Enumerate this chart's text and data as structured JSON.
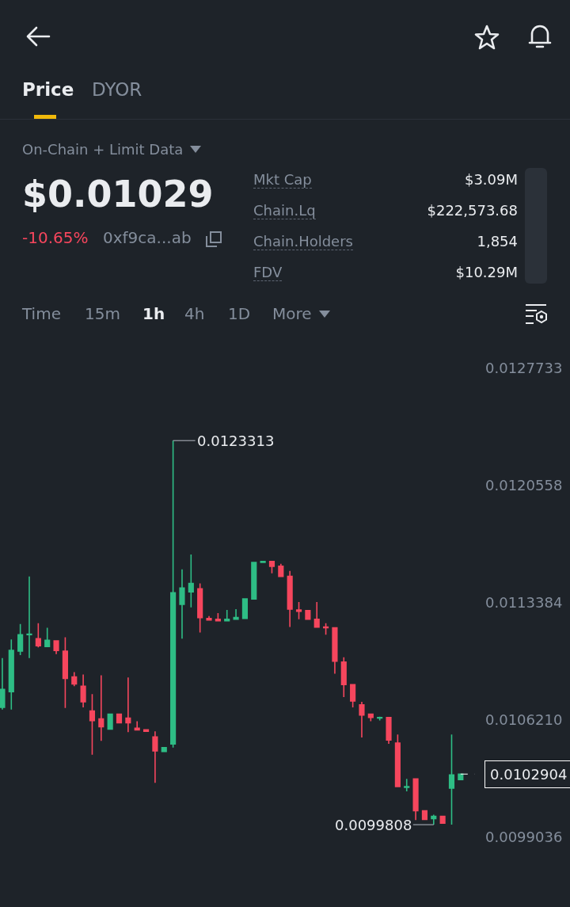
{
  "chart_data": {
    "type": "candlestick",
    "categories": [
      null,
      null,
      null,
      null,
      null,
      null,
      null,
      null,
      null,
      null,
      null,
      null,
      null,
      null,
      null,
      null,
      null,
      null,
      null,
      null,
      null,
      null,
      null,
      null,
      null,
      null,
      null,
      null,
      null,
      null,
      null,
      null,
      null,
      null,
      null,
      null,
      null,
      null,
      null,
      null,
      null,
      null,
      null,
      null,
      null,
      null,
      null,
      null,
      null,
      null,
      null,
      null
    ],
    "ohlc": [
      [
        0.010699,
        0.011,
        0.010685,
        0.010809
      ],
      [
        0.010795,
        0.011114,
        0.010685,
        0.011047
      ],
      [
        0.011043,
        0.011209,
        0.011019,
        0.011143
      ],
      [
        0.011143,
        0.0115,
        0.011,
        0.011147
      ],
      [
        0.011119,
        0.011214,
        0.011066,
        0.011076
      ],
      [
        0.011071,
        0.011186,
        0.011071,
        0.011109
      ],
      [
        0.011105,
        0.011105,
        0.011024,
        0.011047
      ],
      [
        0.011043,
        0.011128,
        0.010695,
        0.010876
      ],
      [
        0.010885,
        0.010914,
        0.010828,
        0.010842
      ],
      [
        0.010828,
        0.0109,
        0.010699,
        0.010733
      ],
      [
        0.010676,
        0.01078,
        0.010409,
        0.010618
      ],
      [
        0.010628,
        0.010895,
        0.010494,
        0.01058
      ],
      [
        0.010566,
        0.010657,
        0.010566,
        0.010657
      ],
      [
        0.010657,
        0.010657,
        0.010604,
        0.010604
      ],
      [
        0.010633,
        0.010881,
        0.010547,
        0.010604
      ],
      [
        0.010571,
        0.010614,
        0.010561,
        0.010561
      ],
      [
        0.010561,
        0.010561,
        0.010552,
        0.010552
      ],
      [
        0.010518,
        0.010552,
        0.010237,
        0.010432
      ],
      [
        0.010428,
        0.010452,
        0.010428,
        0.010452
      ],
      [
        0.010475,
        0.0123313,
        0.010452,
        0.0114
      ],
      [
        0.011329,
        0.011543,
        0.011119,
        0.011429
      ],
      [
        0.011405,
        0.011634,
        0.01131,
        0.011457
      ],
      [
        0.011424,
        0.011457,
        0.011157,
        0.011248
      ],
      [
        0.011243,
        0.011257,
        0.011233,
        0.011233
      ],
      [
        0.011238,
        0.011276,
        0.011229,
        0.011229
      ],
      [
        0.011229,
        0.011295,
        0.011229,
        0.011238
      ],
      [
        0.011238,
        0.0113,
        0.011238,
        0.011248
      ],
      [
        0.011243,
        0.011362,
        0.011243,
        0.011362
      ],
      [
        0.011362,
        0.011586,
        0.011362,
        0.011586
      ],
      [
        0.011586,
        0.011591,
        0.011586,
        0.011591
      ],
      [
        0.011591,
        0.011591,
        0.011519,
        0.011562
      ],
      [
        0.011562,
        0.011577,
        0.0115,
        0.0115
      ],
      [
        0.0115,
        0.011534,
        0.01119,
        0.0113
      ],
      [
        0.011295,
        0.011343,
        0.011238,
        0.011286
      ],
      [
        0.011291,
        0.011291,
        0.011238,
        0.011238
      ],
      [
        0.011238,
        0.011343,
        0.01119,
        0.01119
      ],
      [
        0.01119,
        0.011214,
        0.011143,
        0.011186
      ],
      [
        0.011186,
        0.011186,
        0.010904,
        0.010981
      ],
      [
        0.010976,
        0.011005,
        0.010761,
        0.010838
      ],
      [
        0.010838,
        0.010838,
        0.010699,
        0.010738
      ],
      [
        0.010714,
        0.010733,
        0.010514,
        0.010652
      ],
      [
        0.010657,
        0.010657,
        0.010614,
        0.010637
      ],
      [
        0.010633,
        0.010642,
        0.010618,
        0.010637
      ],
      [
        0.010637,
        0.010637,
        0.010475,
        0.010499
      ],
      [
        0.01048,
        0.010533,
        0.010214,
        0.010214
      ],
      [
        0.010209,
        0.010261,
        0.010185,
        0.010214
      ],
      [
        0.010261,
        0.010261,
        0.010009,
        0.010066
      ],
      [
        0.010066,
        0.010066,
        0.010013,
        0.010013
      ],
      [
        0.010018,
        0.010042,
        0.0099808,
        0.010032
      ],
      [
        0.010032,
        0.010032,
        0.00999,
        0.00999
      ],
      [
        0.010204,
        0.010533,
        0.0099808,
        0.0102856
      ],
      [
        0.010256,
        0.0102904,
        0.010256,
        0.0102904
      ]
    ],
    "colors": [
      "#2ebd85",
      "#2ebd85",
      "#2ebd85",
      "#2ebd85",
      "#f6465d",
      "#2ebd85",
      "#f6465d",
      "#f6465d",
      "#f6465d",
      "#f6465d",
      "#f6465d",
      "#f6465d",
      "#2ebd85",
      "#f6465d",
      "#f6465d",
      "#f6465d",
      "#f6465d",
      "#f6465d",
      "#2ebd85",
      "#2ebd85",
      "#2ebd85",
      "#2ebd85",
      "#f6465d",
      "#f6465d",
      "#f6465d",
      "#2ebd85",
      "#2ebd85",
      "#2ebd85",
      "#2ebd85",
      "#2ebd85",
      "#f6465d",
      "#f6465d",
      "#f6465d",
      "#f6465d",
      "#f6465d",
      "#f6465d",
      "#f6465d",
      "#f6465d",
      "#f6465d",
      "#f6465d",
      "#f6465d",
      "#f6465d",
      "#2ebd85",
      "#f6465d",
      "#f6465d",
      "#2ebd85",
      "#f6465d",
      "#f6465d",
      "#2ebd85",
      "#f6465d",
      "#2ebd85",
      "#2ebd85"
    ],
    "ylim": [
      0.0099036,
      0.0127733
    ],
    "yticks": [
      0.0099036,
      {
        "value": 0.010621,
        "label": "0.0106210"
      },
      {
        "value": 0.0113384,
        "label": "0.0113384"
      },
      {
        "value": 0.0120558,
        "label": "0.0120558"
      },
      0.0127733
    ],
    "tick_labels": "y",
    "ref_lines": [
      {
        "axis": "y",
        "value": 0.0102904,
        "label": "0.0102904",
        "line_style": "dashed",
        "color": "#ffffff"
      }
    ],
    "annotations": [
      "Price",
      "DYOR",
      "On-Chain + Limit Data",
      "$0.01029",
      "-10.65%",
      "0xf9ca...ab",
      "Mkt Cap",
      "$3.09M",
      "Chain.Lq",
      "$222,573.68",
      "Chain.Holders",
      "1,854",
      "FDV",
      "$10.29M",
      "Time",
      "15m",
      "1h",
      "4h",
      "1D",
      "More",
      "0.0123313",
      "0.0099808"
    ]
  }
}
